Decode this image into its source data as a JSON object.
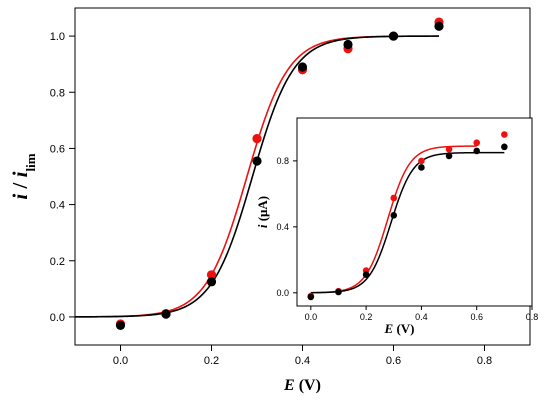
{
  "chart_data": [
    {
      "panel": "main",
      "type": "scatter",
      "xlabel": {
        "var": "E",
        "unit": " (V)"
      },
      "ylabel": {
        "var": "i",
        "sep": " / ",
        "base": "i",
        "sub": "lim"
      },
      "xlim": [
        -0.1,
        0.9
      ],
      "ylim": [
        -0.1,
        1.1
      ],
      "xticks": [
        "0.0",
        "0.2",
        "0.4",
        "0.6",
        "0.8"
      ],
      "yticks": [
        "0.0",
        "0.2",
        "0.4",
        "0.6",
        "0.8",
        "1.0"
      ],
      "series": [
        {
          "color": "#ee1111",
          "points": [
            [
              0.0,
              -0.025
            ],
            [
              0.1,
              0.012
            ],
            [
              0.2,
              0.15
            ],
            [
              0.3,
              0.635
            ],
            [
              0.4,
              0.88
            ],
            [
              0.5,
              0.955
            ],
            [
              0.6,
              1.0
            ],
            [
              0.7,
              1.05
            ]
          ],
          "fit": {
            "plateau": 1.0,
            "e_half": 0.278,
            "slope": 0.045,
            "x_range": [
              -0.1,
              0.7
            ]
          }
        },
        {
          "color": "#000000",
          "points": [
            [
              0.0,
              -0.03
            ],
            [
              0.1,
              0.01
            ],
            [
              0.2,
              0.125
            ],
            [
              0.3,
              0.555
            ],
            [
              0.4,
              0.89
            ],
            [
              0.5,
              0.97
            ],
            [
              0.6,
              1.0
            ],
            [
              0.7,
              1.035
            ]
          ],
          "fit": {
            "plateau": 1.0,
            "e_half": 0.29,
            "slope": 0.045,
            "x_range": [
              -0.1,
              0.7
            ]
          }
        }
      ]
    },
    {
      "panel": "inset",
      "type": "scatter",
      "xlabel": {
        "var": "E",
        "unit": " (V)"
      },
      "ylabel": {
        "var": "i",
        "unit": "  (μA)"
      },
      "xlim": [
        -0.05,
        0.8
      ],
      "ylim": [
        -0.08,
        1.06
      ],
      "xticks": [
        "0.0",
        "0.2",
        "0.4",
        "0.6",
        "0.8"
      ],
      "yticks": [
        "0.0",
        "0.4",
        "0.8"
      ],
      "series": [
        {
          "color": "#ee1111",
          "points": [
            [
              0.0,
              -0.02
            ],
            [
              0.1,
              0.01
            ],
            [
              0.2,
              0.135
            ],
            [
              0.3,
              0.575
            ],
            [
              0.4,
              0.8
            ],
            [
              0.5,
              0.87
            ],
            [
              0.6,
              0.91
            ],
            [
              0.7,
              0.96
            ]
          ],
          "fit": {
            "plateau": 0.89,
            "e_half": 0.278,
            "slope": 0.04,
            "x_range": [
              0.0,
              0.6
            ]
          }
        },
        {
          "color": "#000000",
          "points": [
            [
              0.0,
              -0.025
            ],
            [
              0.1,
              0.005
            ],
            [
              0.2,
              0.11
            ],
            [
              0.3,
              0.47
            ],
            [
              0.4,
              0.76
            ],
            [
              0.5,
              0.83
            ],
            [
              0.6,
              0.86
            ],
            [
              0.7,
              0.885
            ]
          ],
          "fit": {
            "plateau": 0.85,
            "e_half": 0.29,
            "slope": 0.04,
            "x_range": [
              0.0,
              0.7
            ]
          }
        }
      ]
    }
  ]
}
